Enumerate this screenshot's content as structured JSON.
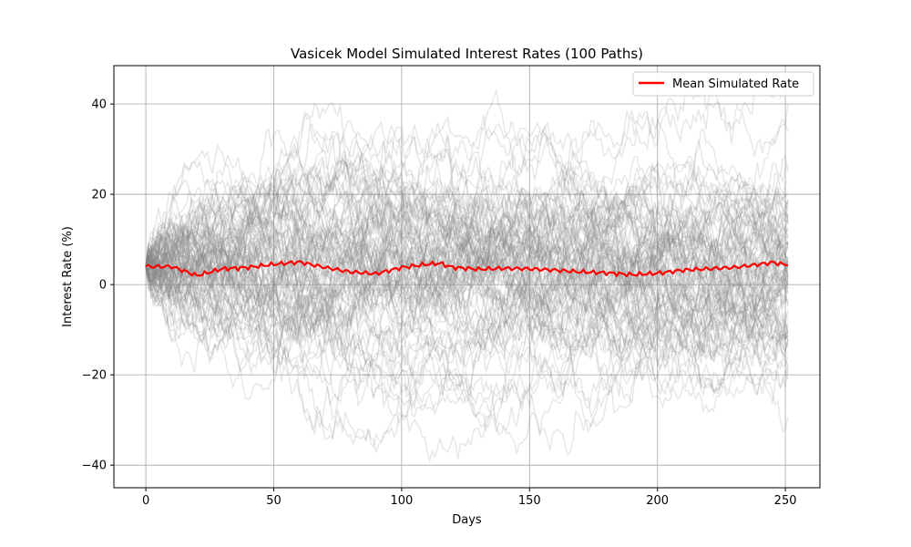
{
  "chart_data": {
    "type": "line",
    "title": "Vasicek Model Simulated Interest Rates (100 Paths)",
    "xlabel": "Days",
    "ylabel": "Interest Rate (%)",
    "xlim": [
      -12.5,
      263.5
    ],
    "ylim": [
      -45,
      48.5
    ],
    "xticks": [
      0,
      50,
      100,
      150,
      200,
      250
    ],
    "yticks": [
      -40,
      -20,
      0,
      20,
      40
    ],
    "xtick_labels": [
      "0",
      "50",
      "100",
      "150",
      "200",
      "250"
    ],
    "ytick_labels": [
      "−40",
      "−20",
      "0",
      "20",
      "40"
    ],
    "grid": true,
    "legend": {
      "placement": "top-right",
      "entries": [
        "Mean Simulated Rate"
      ]
    },
    "n_days": 251,
    "simulated_paths": {
      "count": 100,
      "color": "#808080",
      "start_value": 4,
      "min_value": -41,
      "max_value": 44
    },
    "series": [
      {
        "name": "Mean Simulated Rate",
        "color": "#ff0000",
        "x": [
          0,
          10,
          20,
          30,
          40,
          50,
          60,
          70,
          80,
          90,
          100,
          110,
          115,
          120,
          130,
          140,
          150,
          160,
          170,
          180,
          190,
          200,
          210,
          220,
          230,
          240,
          245,
          251
        ],
        "y": [
          4,
          4,
          2,
          3.5,
          3.8,
          4.5,
          5,
          3.8,
          2.8,
          2.4,
          3.8,
          4.5,
          4.7,
          3.8,
          3.4,
          3.6,
          3.5,
          3.2,
          2.8,
          2.6,
          2.2,
          2.5,
          3.2,
          3.5,
          3.8,
          4.5,
          4.9,
          4.3
        ]
      }
    ]
  }
}
